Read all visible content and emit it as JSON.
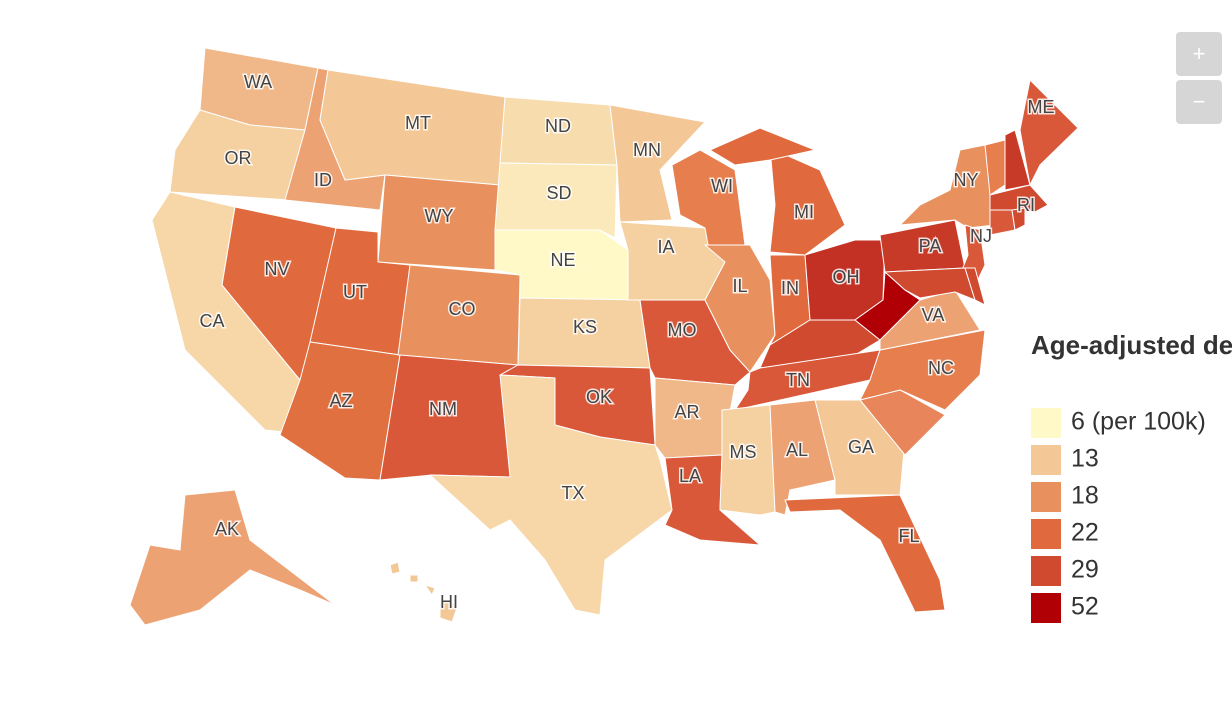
{
  "map": {
    "legend": {
      "title": "Age-adjusted death rate",
      "items": [
        {
          "label": "6 (per 100k)",
          "color": "#fff9c8"
        },
        {
          "label": "13",
          "color": "#f3c896"
        },
        {
          "label": "18",
          "color": "#e8915f"
        },
        {
          "label": "22",
          "color": "#e06a3e"
        },
        {
          "label": "29",
          "color": "#d04a30"
        },
        {
          "label": "52",
          "color": "#b10005"
        }
      ]
    },
    "zoom": {
      "in": "+",
      "out": "−"
    },
    "states": [
      {
        "label": "WA",
        "color": "#f0b888"
      },
      {
        "label": "OR",
        "color": "#f5d0a0"
      },
      {
        "label": "CA",
        "color": "#f7d6a8"
      },
      {
        "label": "ID",
        "color": "#eda273"
      },
      {
        "label": "NV",
        "color": "#e06a3e"
      },
      {
        "label": "MT",
        "color": "#f3c896"
      },
      {
        "label": "WY",
        "color": "#e8915f"
      },
      {
        "label": "UT",
        "color": "#e06a3e"
      },
      {
        "label": "AZ",
        "color": "#e07040"
      },
      {
        "label": "CO",
        "color": "#e8915f"
      },
      {
        "label": "NM",
        "color": "#d9583a"
      },
      {
        "label": "ND",
        "color": "#f7dcae"
      },
      {
        "label": "SD",
        "color": "#fbe8bb"
      },
      {
        "label": "NE",
        "color": "#fff9c8"
      },
      {
        "label": "KS",
        "color": "#f5d0a0"
      },
      {
        "label": "OK",
        "color": "#d9583a"
      },
      {
        "label": "TX",
        "color": "#f7d6a8"
      },
      {
        "label": "MN",
        "color": "#f3c896"
      },
      {
        "label": "IA",
        "color": "#f5d0a0"
      },
      {
        "label": "MO",
        "color": "#d9583a"
      },
      {
        "label": "AR",
        "color": "#f0b888"
      },
      {
        "label": "LA",
        "color": "#d9583a"
      },
      {
        "label": "WI",
        "color": "#e67e4e"
      },
      {
        "label": "IL",
        "color": "#e8915f"
      },
      {
        "label": "MI",
        "color": "#e06a3e"
      },
      {
        "label": "IN",
        "color": "#e06a3e"
      },
      {
        "label": "OH",
        "color": "#c33024"
      },
      {
        "label": null,
        "color": "#d04a30"
      },
      {
        "label": "TN",
        "color": "#d9583a"
      },
      {
        "label": "MS",
        "color": "#f5d0a0"
      },
      {
        "label": "AL",
        "color": "#eda273"
      },
      {
        "label": "GA",
        "color": "#f3c896"
      },
      {
        "label": "FL",
        "color": "#e06a3e"
      },
      {
        "label": null,
        "color": "#e8855a"
      },
      {
        "label": "NC",
        "color": "#e67e4e"
      },
      {
        "label": "VA",
        "color": "#eda273"
      },
      {
        "label": null,
        "color": "#b10005"
      },
      {
        "label": "PA",
        "color": "#c83a28"
      },
      {
        "label": "NY",
        "color": "#e8915f"
      },
      {
        "label": "NJ",
        "color": "#d9583a"
      },
      {
        "label": null,
        "color": "#d04a30"
      },
      {
        "label": null,
        "color": "#d04a30"
      },
      {
        "label": null,
        "color": "#e67e4e"
      },
      {
        "label": null,
        "color": "#c83a28"
      },
      {
        "label": "ME",
        "color": "#d9583a"
      },
      {
        "label": null,
        "color": "#d04a30"
      },
      {
        "label": null,
        "color": "#d9583a"
      },
      {
        "label": "RI",
        "color": "#d04a30"
      },
      {
        "label": "AK",
        "color": "#eda273"
      },
      {
        "label": "HI",
        "color": "#f3c896"
      }
    ]
  }
}
